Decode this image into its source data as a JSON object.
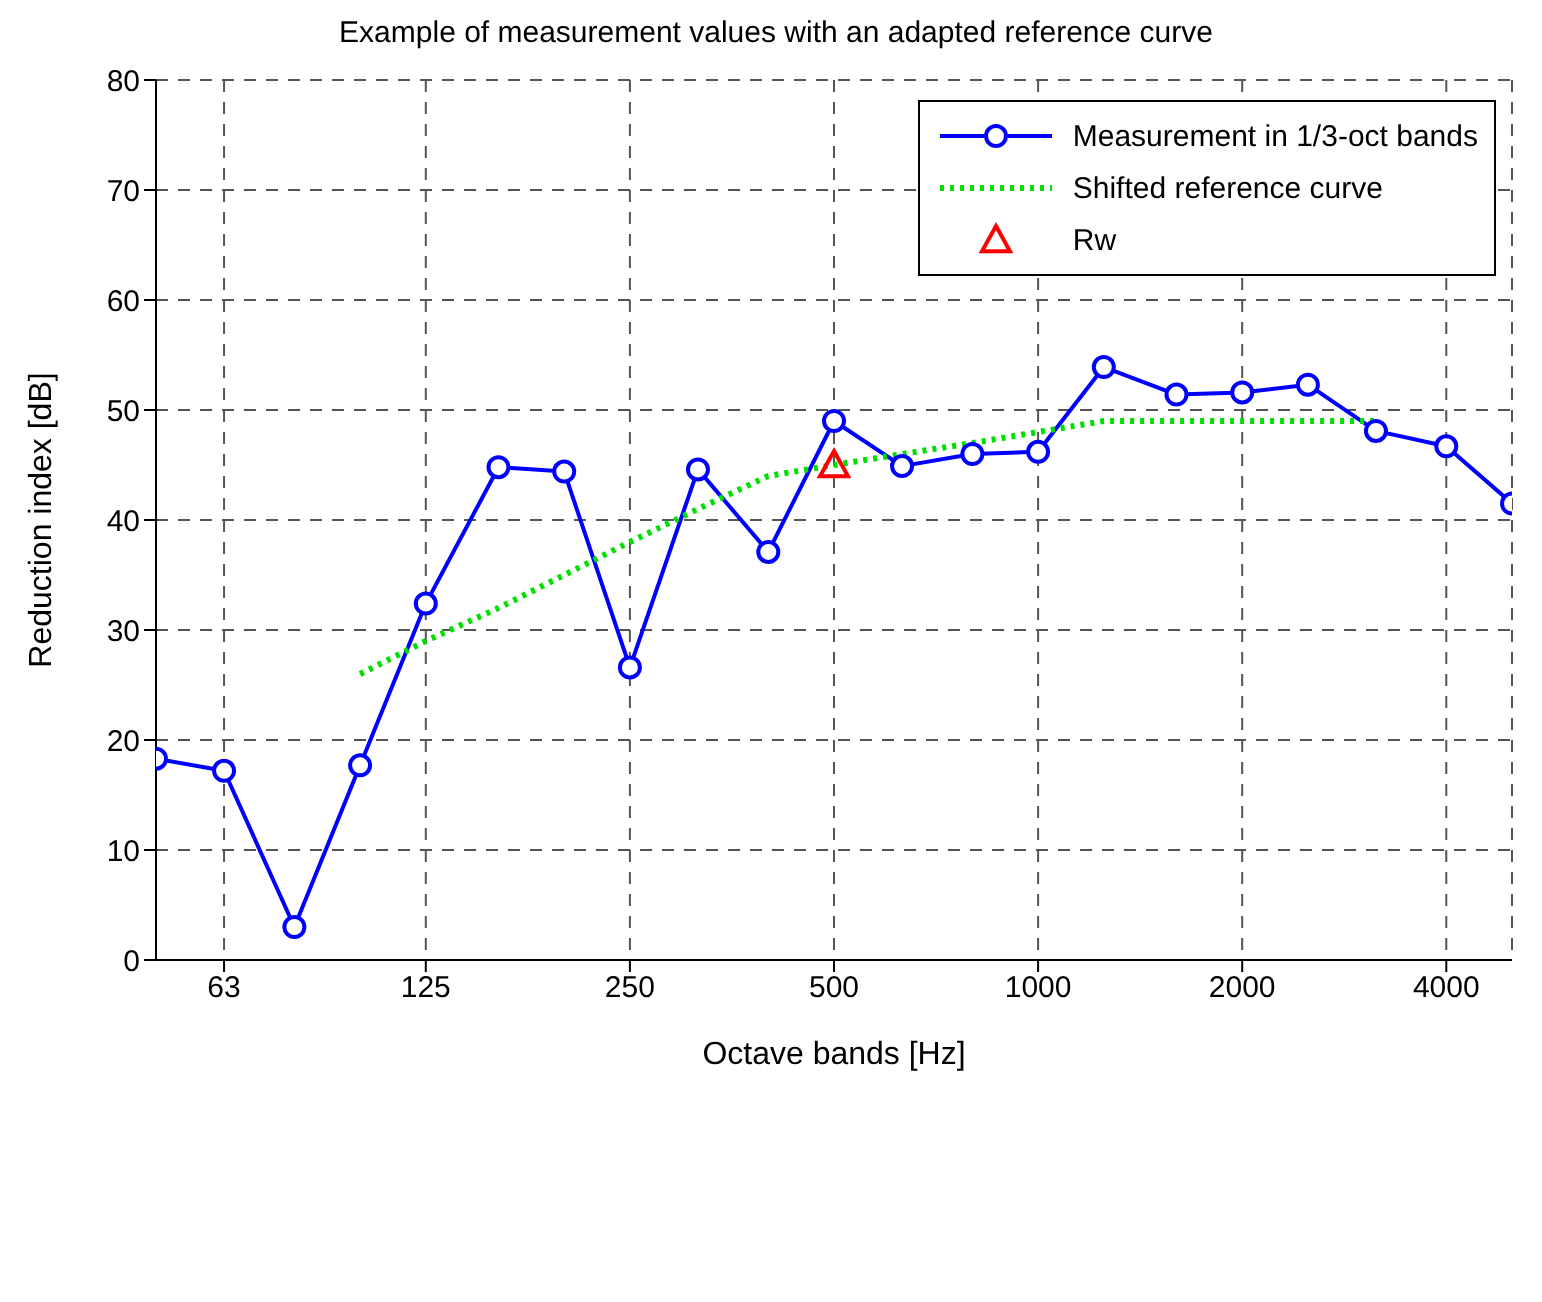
{
  "chart_data": {
    "type": "line",
    "title": "Example of measurement values with an adapted reference curve",
    "xlabel": "Octave bands [Hz]",
    "ylabel": "Reduction index [dB]",
    "log": "x",
    "xlim": [
      50,
      5000
    ],
    "xticks": [
      63,
      125,
      250,
      500,
      1000,
      2000,
      4000
    ],
    "ylim": [
      0,
      80
    ],
    "yticks": [
      0,
      10,
      20,
      30,
      40,
      50,
      60,
      70,
      80
    ],
    "grid": true,
    "legend": "top right",
    "series": [
      {
        "name": "Measurement in 1/3-oct bands",
        "color": "#0000ff",
        "marker": "circle",
        "line_style": "solid",
        "x": [
          50,
          63,
          80,
          100,
          125,
          160,
          200,
          250,
          315,
          400,
          500,
          630,
          800,
          1000,
          1250,
          1600,
          2000,
          2500,
          3150,
          4000,
          5000
        ],
        "values": [
          18.3,
          17.2,
          3,
          17.7,
          32.4,
          44.8,
          44.4,
          26.6,
          44.6,
          37.1,
          49,
          44.9,
          46,
          46.2,
          53.9,
          51.4,
          51.6,
          52.3,
          48.1,
          46.7,
          41.5
        ]
      },
      {
        "name": "Shifted reference curve",
        "color": "#00e000",
        "marker": "none",
        "line_style": "dotted",
        "x": [
          100,
          125,
          160,
          200,
          250,
          315,
          400,
          500,
          630,
          800,
          1000,
          1250,
          1600,
          2000,
          2500,
          3150
        ],
        "values": [
          26,
          29,
          32,
          35,
          38,
          41,
          44,
          45,
          46,
          47,
          48,
          49,
          49,
          49,
          49,
          49
        ]
      },
      {
        "name": "Rw",
        "type": "scatter",
        "color": "#ff0000",
        "marker": "triangle",
        "x": [
          500
        ],
        "values": [
          45
        ]
      }
    ]
  }
}
